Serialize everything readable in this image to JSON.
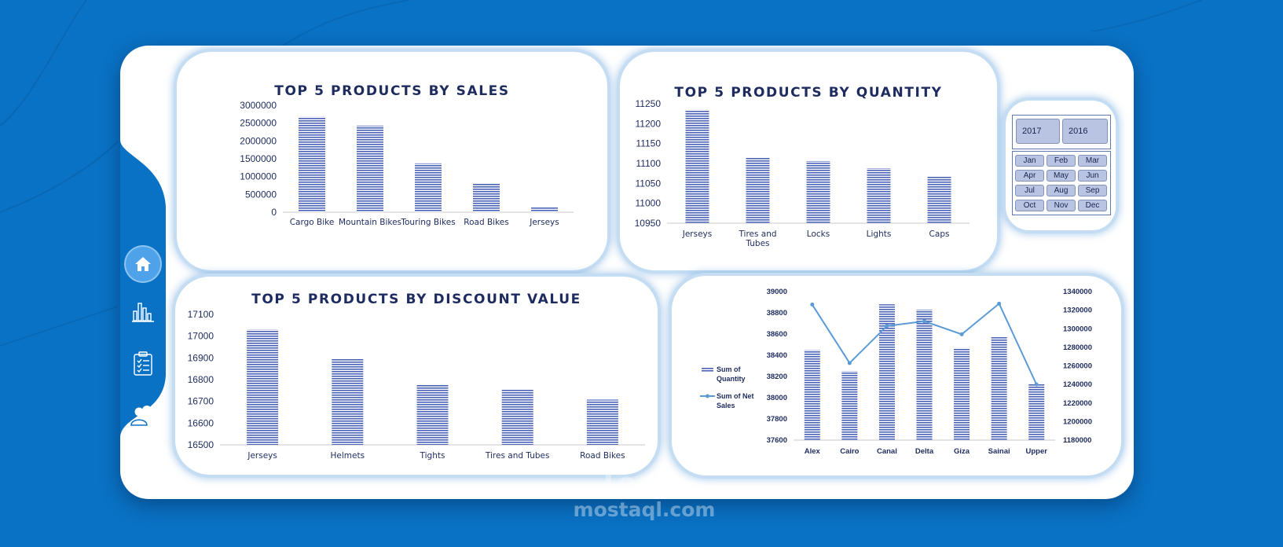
{
  "theme": {
    "background": "#0a72c4",
    "card": "#ffffff",
    "sidebar": "#0a72c4",
    "bar_fill": "#4a62b8",
    "line_color": "#5b9bd5",
    "title_color": "#1d2b5f",
    "slicer_selected": "#b8c4e2"
  },
  "sidebar": {
    "items": [
      {
        "icon": "home-icon",
        "active": true
      },
      {
        "icon": "bar-chart-icon",
        "active": false
      },
      {
        "icon": "clipboard-checklist-icon",
        "active": false
      },
      {
        "icon": "users-icon",
        "active": false
      }
    ]
  },
  "filters": {
    "years": [
      "2017",
      "2016"
    ],
    "months": [
      "Jan",
      "Feb",
      "Mar",
      "Apr",
      "May",
      "Jun",
      "Jul",
      "Aug",
      "Sep",
      "Oct",
      "Nov",
      "Dec"
    ]
  },
  "chart_data": [
    {
      "type": "bar",
      "title": "TOP 5 PRODUCTS BY SALES",
      "categories": [
        "Cargo Bike",
        "Mountain Bikes",
        "Touring Bikes",
        "Road Bikes",
        "Jerseys"
      ],
      "values": [
        2680000,
        2430000,
        1370000,
        800000,
        150000
      ],
      "ylim": [
        0,
        3000000
      ],
      "yticks": [
        "0",
        "500000",
        "1000000",
        "1500000",
        "2000000",
        "2500000",
        "3000000"
      ],
      "grid": false,
      "legend": "none"
    },
    {
      "type": "bar",
      "title": "TOP 5 PRODUCTS BY QUANTITY",
      "categories": [
        "Jerseys",
        "Tires and Tubes",
        "Locks",
        "Lights",
        "Caps"
      ],
      "values": [
        11235,
        11115,
        11106,
        11088,
        11067
      ],
      "ylim": [
        10950,
        11250
      ],
      "yticks": [
        "10950",
        "11000",
        "11050",
        "11100",
        "11150",
        "11200",
        "11250"
      ],
      "grid": false,
      "legend": "none"
    },
    {
      "type": "bar",
      "title": "TOP 5 PRODUCTS BY DISCOUNT VALUE",
      "categories": [
        "Jerseys",
        "Helmets",
        "Tights",
        "Tires and Tubes",
        "Road Bikes"
      ],
      "values": [
        17030,
        16895,
        16778,
        16753,
        16708
      ],
      "ylim": [
        16500,
        17100
      ],
      "yticks": [
        "16500",
        "16600",
        "16700",
        "16800",
        "16900",
        "17000",
        "17100"
      ],
      "grid": false,
      "legend": "none"
    },
    {
      "type": "bar",
      "title": "",
      "categories": [
        "Alex",
        "Cairo",
        "Canal",
        "Delta",
        "Giza",
        "Sainai",
        "Upper"
      ],
      "series": [
        {
          "name": "Sum of Quantity",
          "type": "bar",
          "axis": "left",
          "values": [
            38450,
            38250,
            38880,
            38830,
            38470,
            38570,
            38130
          ]
        },
        {
          "name": "Sum of Net Sales",
          "type": "line",
          "axis": "right",
          "values": [
            1326000,
            1263000,
            1303000,
            1308000,
            1294000,
            1327000,
            1240000
          ]
        }
      ],
      "ylim": [
        37600,
        39000
      ],
      "yticks": [
        "37600",
        "37800",
        "38000",
        "38200",
        "38400",
        "38600",
        "38800",
        "39000"
      ],
      "y2lim": [
        1180000,
        1340000
      ],
      "y2ticks": [
        "1180000",
        "1200000",
        "1220000",
        "1240000",
        "1260000",
        "1280000",
        "1300000",
        "1320000",
        "1340000"
      ],
      "grid": false,
      "legend": "left"
    }
  ],
  "watermark": {
    "arabic": "مستقل",
    "latin": "mostaql.com"
  }
}
